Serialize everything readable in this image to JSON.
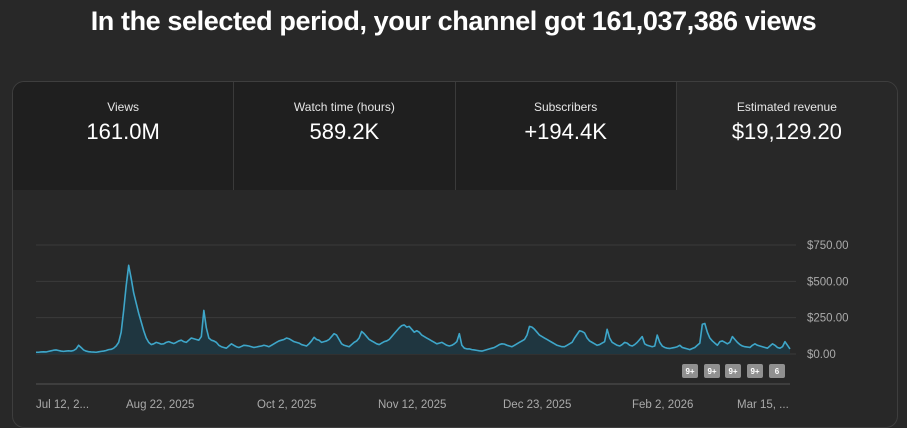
{
  "headline": "In the selected period, your channel got 161,037,386 views",
  "tabs": [
    {
      "label": "Views",
      "value": "161.0M"
    },
    {
      "label": "Watch time (hours)",
      "value": "589.2K"
    },
    {
      "label": "Subscribers",
      "value": "+194.4K"
    },
    {
      "label": "Estimated revenue",
      "value": "$19,129.20",
      "selected": true
    }
  ],
  "badges": [
    "9+",
    "9+",
    "9+",
    "9+",
    "6"
  ],
  "colors": {
    "line": "#3ea6c9",
    "fill": "#1f3640",
    "grid": "#3a3a3a"
  },
  "chart_data": {
    "type": "area",
    "series": [
      {
        "values": [
          12,
          12,
          14,
          15,
          14,
          18,
          22,
          26,
          28,
          24,
          20,
          18,
          20,
          22,
          20,
          24,
          35,
          60,
          45,
          28,
          20,
          16,
          14,
          13,
          12,
          15,
          18,
          20,
          24,
          30,
          32,
          40,
          55,
          80,
          150,
          300,
          470,
          610,
          520,
          420,
          350,
          280,
          220,
          160,
          110,
          80,
          65,
          70,
          80,
          75,
          68,
          70,
          80,
          85,
          78,
          72,
          80,
          90,
          95,
          85,
          80,
          95,
          110,
          105,
          100,
          95,
          120,
          300,
          180,
          110,
          95,
          90,
          80,
          60,
          50,
          45,
          40,
          55,
          70,
          60,
          50,
          45,
          52,
          60,
          58,
          55,
          50,
          45,
          48,
          52,
          55,
          60,
          56,
          50,
          60,
          70,
          80,
          90,
          95,
          100,
          110,
          105,
          95,
          85,
          80,
          75,
          65,
          60,
          55,
          70,
          90,
          115,
          100,
          95,
          80,
          85,
          90,
          100,
          120,
          140,
          130,
          100,
          70,
          60,
          55,
          50,
          65,
          80,
          90,
          110,
          155,
          140,
          120,
          100,
          90,
          80,
          70,
          65,
          75,
          85,
          90,
          100,
          120,
          140,
          160,
          180,
          195,
          200,
          185,
          190,
          170,
          150,
          160,
          150,
          130,
          120,
          110,
          100,
          90,
          80,
          70,
          75,
          80,
          70,
          60,
          55,
          60,
          70,
          85,
          140,
          60,
          40,
          35,
          35,
          30,
          28,
          25,
          22,
          20,
          25,
          30,
          35,
          40,
          45,
          55,
          65,
          70,
          68,
          60,
          55,
          50,
          60,
          70,
          80,
          90,
          100,
          130,
          190,
          185,
          170,
          150,
          130,
          120,
          110,
          100,
          90,
          80,
          70,
          60,
          55,
          50,
          50,
          60,
          70,
          80,
          110,
          135,
          160,
          155,
          145,
          110,
          90,
          80,
          70,
          60,
          65,
          75,
          85,
          170,
          110,
          80,
          70,
          60,
          55,
          65,
          80,
          75,
          60,
          55,
          65,
          80,
          100,
          120,
          70,
          60,
          55,
          50,
          55,
          130,
          80,
          55,
          45,
          40,
          38,
          42,
          45,
          50,
          60,
          45,
          40,
          35,
          30,
          38,
          45,
          60,
          75,
          205,
          210,
          150,
          110,
          90,
          75,
          60,
          85,
          90,
          80,
          70,
          80,
          120,
          100,
          80,
          65,
          55,
          50,
          48,
          45,
          60,
          70,
          60,
          55,
          50,
          45,
          40,
          55,
          70,
          60,
          45,
          40,
          50,
          85,
          60,
          35
        ]
      }
    ],
    "xlabels": [
      "Jul 12, 2...",
      "Aug 22, 2025",
      "Oct 2, 2025",
      "Nov 12, 2025",
      "Dec 23, 2025",
      "Feb 2, 2026",
      "Mar 15, ..."
    ],
    "yticks": [
      "$750.00",
      "$500.00",
      "$250.00",
      "$0.00"
    ],
    "ylim": [
      0,
      750
    ],
    "grid": true
  }
}
